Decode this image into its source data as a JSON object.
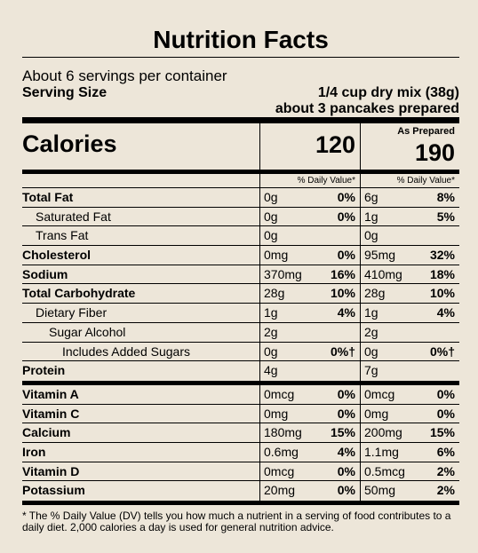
{
  "title": "Nutrition Facts",
  "servings_per_container": "About 6 servings per container",
  "serving_size_label": "Serving Size",
  "serving_size_value": "1/4 cup dry mix (38g)",
  "prepared_note": "about 3 pancakes prepared",
  "calories_label": "Calories",
  "calories_dry": "120",
  "as_prepared_label": "As Prepared",
  "calories_prepared": "190",
  "dv_header": "% Daily Value*",
  "nutrients": [
    {
      "name": "Total Fat",
      "amt1": "0g",
      "dv1": "0%",
      "amt2": "6g",
      "dv2": "8%"
    },
    {
      "name": "Saturated Fat",
      "amt1": "0g",
      "dv1": "0%",
      "amt2": "1g",
      "dv2": "5%"
    },
    {
      "name": "Trans Fat",
      "amt1": "0g",
      "dv1": "",
      "amt2": "0g",
      "dv2": ""
    },
    {
      "name": "Cholesterol",
      "amt1": "0mg",
      "dv1": "0%",
      "amt2": "95mg",
      "dv2": "32%"
    },
    {
      "name": "Sodium",
      "amt1": "370mg",
      "dv1": "16%",
      "amt2": "410mg",
      "dv2": "18%"
    },
    {
      "name": "Total Carbohydrate",
      "amt1": "28g",
      "dv1": "10%",
      "amt2": "28g",
      "dv2": "10%"
    },
    {
      "name": "Dietary Fiber",
      "amt1": "1g",
      "dv1": "4%",
      "amt2": "1g",
      "dv2": "4%"
    },
    {
      "name": "Sugar Alcohol",
      "amt1": "2g",
      "dv1": "",
      "amt2": "2g",
      "dv2": ""
    },
    {
      "name": "Includes Added Sugars",
      "amt1": "0g",
      "dv1": "0%†",
      "amt2": "0g",
      "dv2": "0%†"
    },
    {
      "name": "Protein",
      "amt1": "4g",
      "dv1": "",
      "amt2": "7g",
      "dv2": ""
    }
  ],
  "vitamins": [
    {
      "name": "Vitamin A",
      "amt1": "0mcg",
      "dv1": "0%",
      "amt2": "0mcg",
      "dv2": "0%"
    },
    {
      "name": "Vitamin C",
      "amt1": "0mg",
      "dv1": "0%",
      "amt2": "0mg",
      "dv2": "0%"
    },
    {
      "name": "Calcium",
      "amt1": "180mg",
      "dv1": "15%",
      "amt2": "200mg",
      "dv2": "15%"
    },
    {
      "name": "Iron",
      "amt1": "0.6mg",
      "dv1": "4%",
      "amt2": "1.1mg",
      "dv2": "6%"
    },
    {
      "name": "Vitamin D",
      "amt1": "0mcg",
      "dv1": "0%",
      "amt2": "0.5mcg",
      "dv2": "2%"
    },
    {
      "name": "Potassium",
      "amt1": "20mg",
      "dv1": "0%",
      "amt2": "50mg",
      "dv2": "2%"
    }
  ],
  "footnote": "* The % Daily Value (DV) tells you how much a nutrient in a serving of food contributes to a daily diet. 2,000 calories a day is used for general nutrition advice."
}
